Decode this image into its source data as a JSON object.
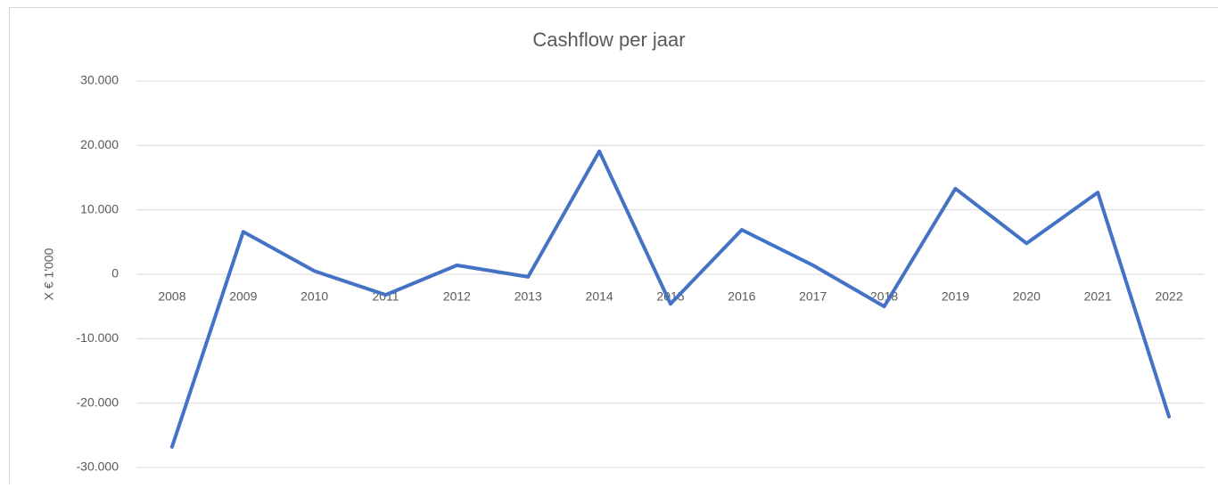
{
  "chart_data": {
    "type": "line",
    "title": "Cashflow per jaar",
    "y_label": "X € 1'000",
    "categories": [
      "2008",
      "2009",
      "2010",
      "2011",
      "2012",
      "2013",
      "2014",
      "2015",
      "2016",
      "2017",
      "2018",
      "2019",
      "2020",
      "2021",
      "2022"
    ],
    "series": [
      {
        "name": "Cashflow",
        "color": "#4472c4",
        "values": [
          -26800,
          6600,
          500,
          -3200,
          1400,
          -400,
          19100,
          -4600,
          6900,
          1400,
          -5000,
          13300,
          4800,
          12700,
          -22100
        ]
      }
    ],
    "ylim": [
      -30000,
      30000
    ],
    "yticks": [
      {
        "value": -30000,
        "label": "-30.000"
      },
      {
        "value": -20000,
        "label": "-20.000"
      },
      {
        "value": -10000,
        "label": "-10.000"
      },
      0,
      {
        "value": 10000,
        "label": "10.000"
      },
      {
        "value": 20000,
        "label": "20.000"
      },
      {
        "value": 30000,
        "label": "30.000"
      }
    ],
    "grid": true
  }
}
